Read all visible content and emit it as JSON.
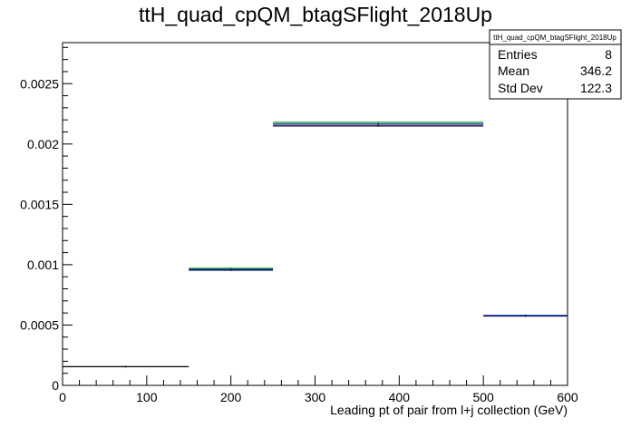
{
  "chart_data": {
    "type": "step",
    "title": "ttH_quad_cpQM_btagSFlight_2018Up",
    "xlabel": "Leading pt of pair from l+j collection (GeV)",
    "ylabel": "",
    "xlim": [
      0,
      600
    ],
    "ylim": [
      0,
      0.00284
    ],
    "x_ticks": [
      0,
      100,
      200,
      300,
      400,
      500,
      600
    ],
    "x_tick_labels": [
      "0",
      "100",
      "200",
      "300",
      "400",
      "500",
      "600"
    ],
    "y_ticks": [
      0,
      0.0005,
      0.001,
      0.0015,
      0.002,
      0.0025
    ],
    "y_tick_labels": [
      "0",
      "0.0005",
      "0.001",
      "0.0015",
      "0.002",
      "0.0025"
    ],
    "grid": false,
    "stats_box": {
      "name": "ttH_quad_cpQM_btagSFlight_2018Up",
      "rows": [
        {
          "label": "Entries",
          "value": "8"
        },
        {
          "label": "Mean",
          "value": "346.2"
        },
        {
          "label": "Std Dev",
          "value": "122.3"
        }
      ]
    },
    "series": [
      {
        "color": "#000000",
        "bins": [
          {
            "x0": 0,
            "x1": 150,
            "y": 0.000155
          },
          {
            "x0": 150,
            "x1": 250,
            "y": 0.000955
          },
          {
            "x0": 250,
            "x1": 500,
            "y": 0.00215
          },
          {
            "x0": 500,
            "x1": 600,
            "y": 0.000575
          }
        ]
      },
      {
        "color": "#00aa00",
        "bins": [
          {
            "x0": 150,
            "x1": 250,
            "y": 0.00097
          },
          {
            "x0": 250,
            "x1": 500,
            "y": 0.00218
          },
          {
            "x0": 500,
            "x1": 600,
            "y": 0.00058
          }
        ]
      },
      {
        "color": "#0000cc",
        "bins": [
          {
            "x0": 150,
            "x1": 250,
            "y": 0.00096
          },
          {
            "x0": 250,
            "x1": 500,
            "y": 0.002165
          },
          {
            "x0": 500,
            "x1": 600,
            "y": 0.000578
          }
        ]
      }
    ]
  }
}
